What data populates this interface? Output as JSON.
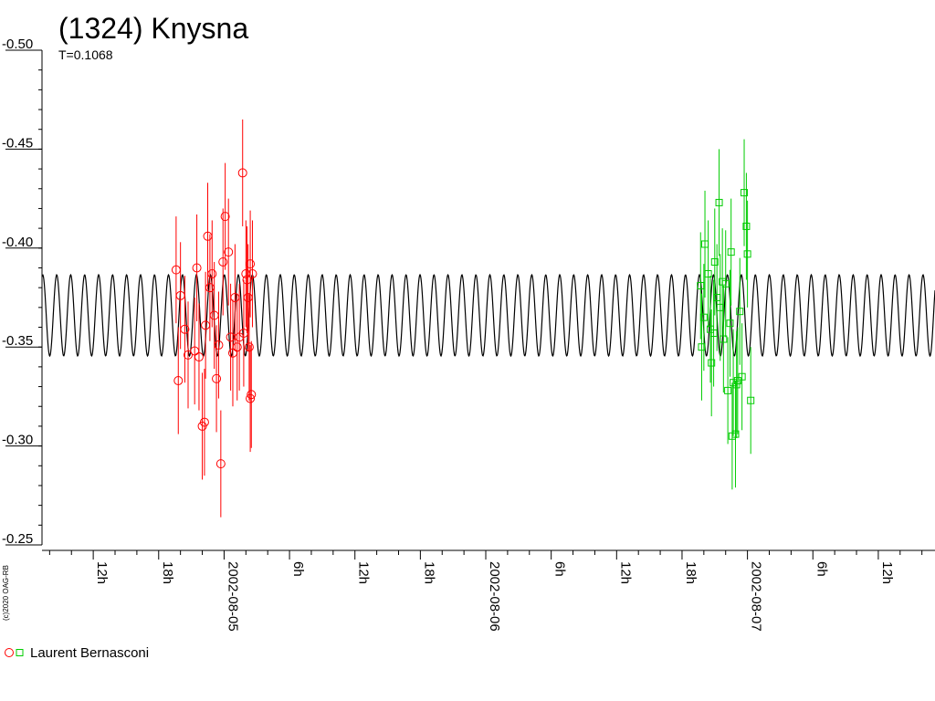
{
  "chart_data": {
    "type": "scatter",
    "title": "(1324) Knysna",
    "subtitle": "T=0.1068",
    "y_axis": {
      "min": -0.25,
      "max": -0.5,
      "ticks": [
        "-0.50",
        "-0.45",
        "-0.40",
        "-0.35",
        "-0.30",
        "-0.25"
      ],
      "tick_values": [
        -0.5,
        -0.45,
        -0.4,
        -0.35,
        -0.3,
        -0.25
      ]
    },
    "x_axis": {
      "range_hours": [
        7.3,
        89.2
      ],
      "major_ticks": [
        {
          "hour": 12,
          "label": "12h"
        },
        {
          "hour": 18,
          "label": "18h"
        },
        {
          "hour": 24,
          "label": "2002-08-05"
        },
        {
          "hour": 30,
          "label": "6h"
        },
        {
          "hour": 36,
          "label": "12h"
        },
        {
          "hour": 42,
          "label": "18h"
        },
        {
          "hour": 48,
          "label": "2002-08-06"
        },
        {
          "hour": 54,
          "label": "6h"
        },
        {
          "hour": 60,
          "label": "12h"
        },
        {
          "hour": 66,
          "label": "18h"
        },
        {
          "hour": 72,
          "label": "2002-08-07"
        },
        {
          "hour": 78,
          "label": "6h"
        },
        {
          "hour": 84,
          "label": "12h"
        }
      ]
    },
    "model_curve": {
      "period_hours": 1.2815,
      "center": -0.366,
      "half_amplitude": 0.0205,
      "color": "#000000"
    },
    "series": [
      {
        "name": "Laurent Bernasconi",
        "marker": "circle",
        "color": "#ff0000",
        "points": [
          [
            19.6,
            -0.389,
            0.027
          ],
          [
            19.8,
            -0.333,
            0.027
          ],
          [
            20.0,
            -0.376,
            0.027
          ],
          [
            20.4,
            -0.359,
            0.027
          ],
          [
            20.7,
            -0.346,
            0.027
          ],
          [
            21.3,
            -0.348,
            0.027
          ],
          [
            21.5,
            -0.39,
            0.027
          ],
          [
            21.7,
            -0.345,
            0.027
          ],
          [
            22.0,
            -0.31,
            0.027
          ],
          [
            22.2,
            -0.312,
            0.027
          ],
          [
            22.3,
            -0.361,
            0.027
          ],
          [
            22.5,
            -0.406,
            0.027
          ],
          [
            22.7,
            -0.38,
            0.027
          ],
          [
            22.9,
            -0.387,
            0.027
          ],
          [
            23.1,
            -0.366,
            0.027
          ],
          [
            23.3,
            -0.334,
            0.027
          ],
          [
            23.5,
            -0.351,
            0.027
          ],
          [
            23.7,
            -0.291,
            0.027
          ],
          [
            23.9,
            -0.393,
            0.027
          ],
          [
            24.1,
            -0.416,
            0.027
          ],
          [
            24.4,
            -0.398,
            0.027
          ],
          [
            24.6,
            -0.355,
            0.027
          ],
          [
            24.8,
            -0.347,
            0.027
          ],
          [
            25.0,
            -0.375,
            0.027
          ],
          [
            25.2,
            -0.35,
            0.027
          ],
          [
            25.4,
            -0.355,
            0.027
          ],
          [
            25.7,
            -0.438,
            0.027
          ],
          [
            25.8,
            -0.357,
            0.027
          ],
          [
            26.0,
            -0.387,
            0.027
          ],
          [
            26.1,
            -0.384,
            0.027
          ],
          [
            26.2,
            -0.375,
            0.027
          ],
          [
            26.3,
            -0.35,
            0.027
          ],
          [
            26.4,
            -0.324,
            0.027
          ],
          [
            26.4,
            -0.392,
            0.027
          ],
          [
            26.5,
            -0.326,
            0.027
          ],
          [
            26.6,
            -0.387,
            0.027
          ]
        ]
      },
      {
        "name": "Laurent Bernasconi",
        "marker": "square",
        "color": "#00cc00",
        "points": [
          [
            67.7,
            -0.381,
            0.027
          ],
          [
            67.8,
            -0.35,
            0.027
          ],
          [
            68.0,
            -0.365,
            0.027
          ],
          [
            68.1,
            -0.402,
            0.027
          ],
          [
            68.4,
            -0.387,
            0.027
          ],
          [
            68.6,
            -0.359,
            0.027
          ],
          [
            68.7,
            -0.342,
            0.027
          ],
          [
            68.9,
            -0.357,
            0.027
          ],
          [
            69.0,
            -0.393,
            0.027
          ],
          [
            69.2,
            -0.375,
            0.027
          ],
          [
            69.4,
            -0.423,
            0.027
          ],
          [
            69.5,
            -0.37,
            0.027
          ],
          [
            69.7,
            -0.383,
            0.027
          ],
          [
            69.8,
            -0.354,
            0.027
          ],
          [
            70.0,
            -0.382,
            0.027
          ],
          [
            70.2,
            -0.328,
            0.027
          ],
          [
            70.4,
            -0.362,
            0.027
          ],
          [
            70.5,
            -0.398,
            0.027
          ],
          [
            70.6,
            -0.305,
            0.027
          ],
          [
            70.7,
            -0.332,
            0.027
          ],
          [
            70.9,
            -0.306,
            0.027
          ],
          [
            71.0,
            -0.331,
            0.027
          ],
          [
            71.1,
            -0.333,
            0.027
          ],
          [
            71.3,
            -0.368,
            0.027
          ],
          [
            71.5,
            -0.335,
            0.027
          ],
          [
            71.7,
            -0.428,
            0.027
          ],
          [
            71.9,
            -0.411,
            0.027
          ],
          [
            72.0,
            -0.397,
            0.027
          ],
          [
            72.3,
            -0.323,
            0.027
          ]
        ]
      }
    ],
    "legend": {
      "position": "bottom-left",
      "label": "Laurent Bernasconi"
    },
    "copyright": "(c)2020 OAG-RB"
  }
}
